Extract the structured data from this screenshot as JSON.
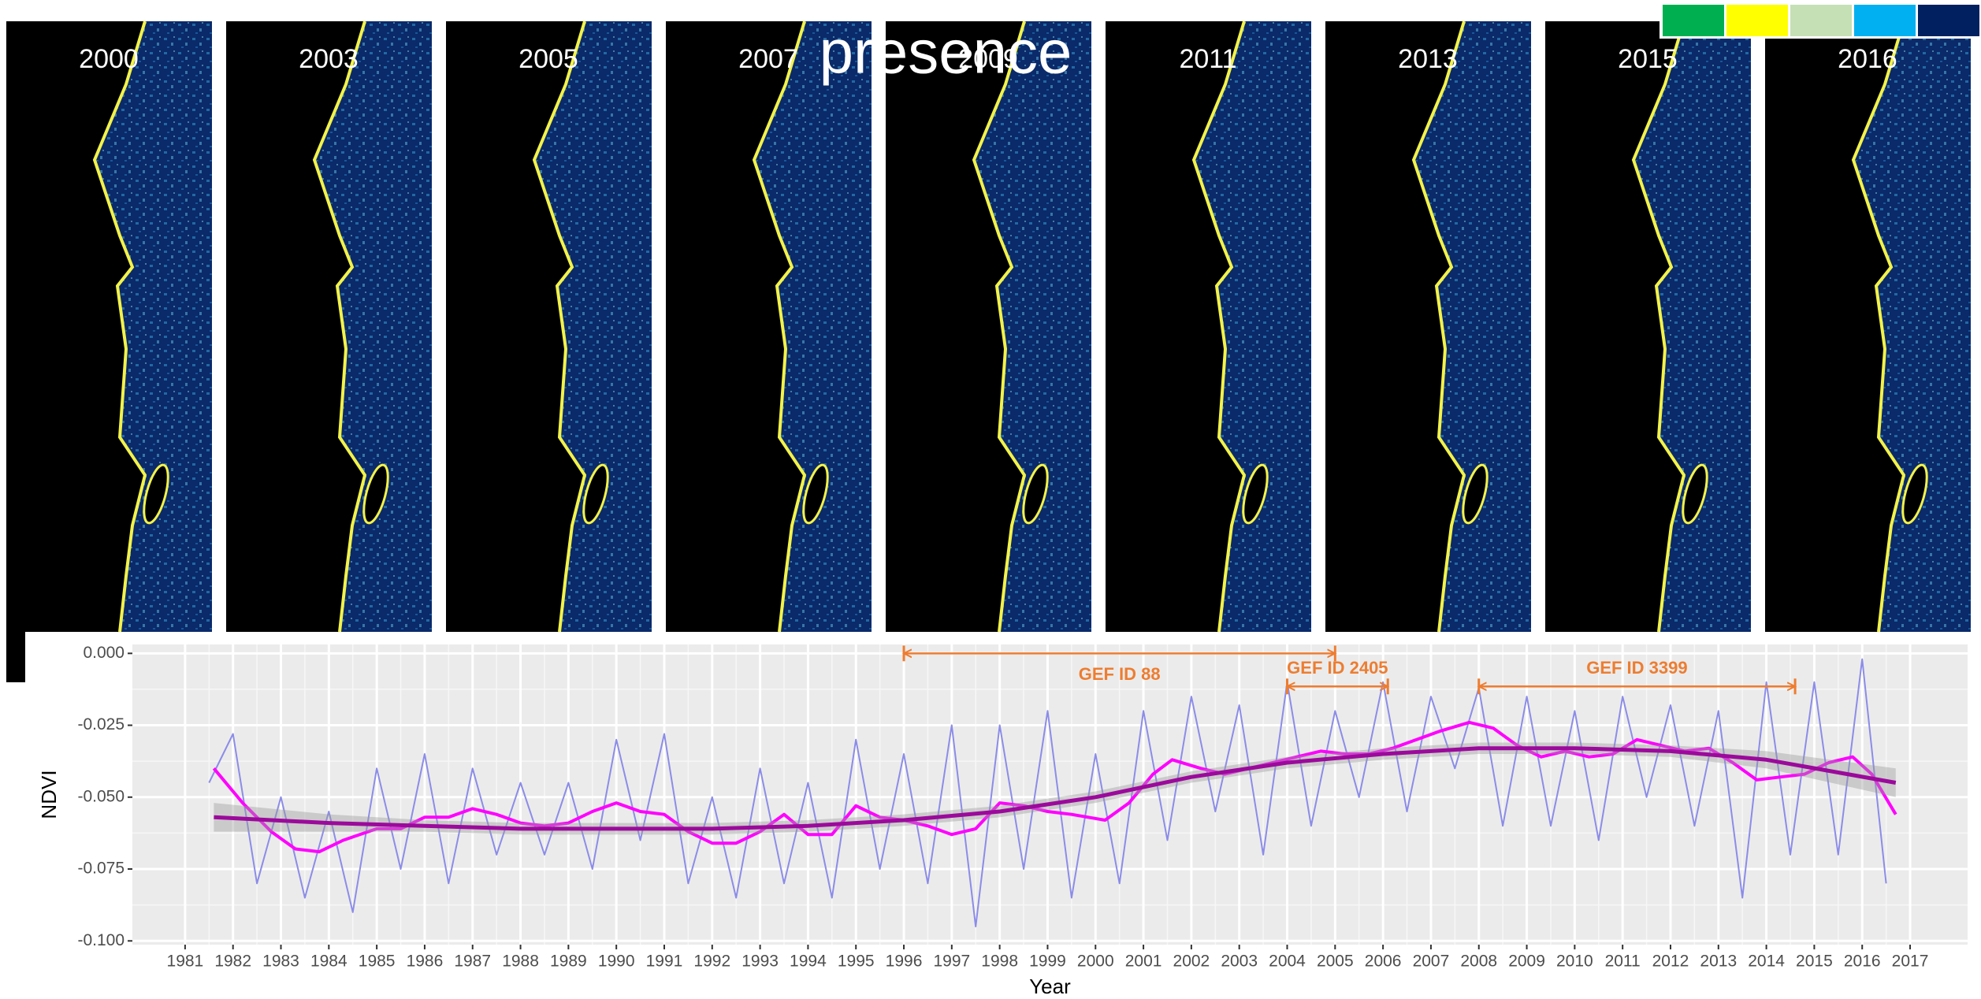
{
  "header": {
    "title": "presence"
  },
  "panels": {
    "labels": [
      "2000",
      "2003",
      "2005",
      "2007",
      "2009",
      "2011",
      "2013",
      "2015",
      "2016"
    ]
  },
  "chart_data": {
    "type": "line",
    "x_label": "Year",
    "y_label": "NDVI",
    "xlim": [
      1979.9,
      2018.2
    ],
    "ylim": [
      -0.1013,
      0.0031
    ],
    "xticks": [
      1981,
      1982,
      1983,
      1984,
      1985,
      1986,
      1987,
      1988,
      1989,
      1990,
      1991,
      1992,
      1993,
      1994,
      1995,
      1996,
      1997,
      1998,
      1999,
      2000,
      2001,
      2002,
      2003,
      2004,
      2005,
      2006,
      2007,
      2008,
      2009,
      2010,
      2011,
      2012,
      2013,
      2014,
      2015,
      2016,
      2017
    ],
    "yticks": [
      {
        "value": -0.1,
        "label": "-0.100"
      },
      {
        "value": -0.075,
        "label": "-0.075"
      },
      {
        "value": -0.05,
        "label": "-0.050"
      },
      {
        "value": -0.025,
        "label": "-0.025"
      },
      {
        "value": 0,
        "label": "0.000"
      }
    ],
    "grid": true,
    "series": [
      {
        "color": "#8c8ce8",
        "line_width": 2,
        "x": [
          1981.5,
          1982,
          1982.5,
          1983,
          1983.5,
          1984,
          1984.5,
          1985,
          1985.5,
          1986,
          1986.5,
          1987,
          1987.5,
          1988,
          1988.5,
          1989,
          1989.5,
          1990,
          1990.5,
          1991,
          1991.5,
          1992,
          1992.5,
          1993,
          1993.5,
          1994,
          1994.5,
          1995,
          1995.5,
          1996,
          1996.5,
          1997,
          1997.5,
          1998,
          1998.5,
          1999,
          1999.5,
          2000,
          2000.5,
          2001,
          2001.5,
          2002,
          2002.5,
          2003,
          2003.5,
          2004,
          2004.5,
          2005,
          2005.5,
          2006,
          2006.5,
          2007,
          2007.5,
          2008,
          2008.5,
          2009,
          2009.5,
          2010,
          2010.5,
          2011,
          2011.5,
          2012,
          2012.5,
          2013,
          2013.5,
          2014,
          2014.5,
          2015,
          2015.5,
          2016,
          2016.5
        ],
        "values": [
          -0.045,
          -0.028,
          -0.08,
          -0.05,
          -0.085,
          -0.055,
          -0.09,
          -0.04,
          -0.075,
          -0.035,
          -0.08,
          -0.04,
          -0.07,
          -0.045,
          -0.07,
          -0.045,
          -0.075,
          -0.03,
          -0.065,
          -0.028,
          -0.08,
          -0.05,
          -0.085,
          -0.04,
          -0.08,
          -0.045,
          -0.085,
          -0.03,
          -0.075,
          -0.035,
          -0.08,
          -0.025,
          -0.095,
          -0.025,
          -0.075,
          -0.02,
          -0.085,
          -0.035,
          -0.08,
          -0.02,
          -0.065,
          -0.015,
          -0.055,
          -0.018,
          -0.07,
          -0.01,
          -0.06,
          -0.02,
          -0.05,
          -0.01,
          -0.055,
          -0.015,
          -0.04,
          -0.012,
          -0.06,
          -0.015,
          -0.06,
          -0.02,
          -0.065,
          -0.015,
          -0.05,
          -0.018,
          -0.06,
          -0.02,
          -0.085,
          -0.01,
          -0.07,
          -0.01,
          -0.07,
          -0.002,
          -0.08
        ]
      },
      {
        "color": "#ff00ff",
        "line_width": 4,
        "x": [
          1981.6,
          1982.2,
          1982.8,
          1983.3,
          1983.8,
          1984.3,
          1985,
          1985.5,
          1986,
          1986.5,
          1987,
          1987.5,
          1988,
          1988.5,
          1989,
          1989.5,
          1990,
          1990.5,
          1991,
          1991.5,
          1992,
          1992.5,
          1993,
          1993.5,
          1994,
          1994.5,
          1995,
          1995.5,
          1996,
          1996.5,
          1997,
          1997.5,
          1998,
          1998.5,
          1999,
          1999.5,
          2000.2,
          2000.7,
          2001.2,
          2001.6,
          2002.2,
          2002.7,
          2003.2,
          2003.7,
          2004.2,
          2004.7,
          2005.2,
          2005.7,
          2006.2,
          2006.7,
          2007.2,
          2007.8,
          2008.3,
          2008.8,
          2009.3,
          2009.8,
          2010.3,
          2010.8,
          2011.3,
          2011.8,
          2012.3,
          2012.8,
          2013.3,
          2013.8,
          2014.3,
          2014.8,
          2015.3,
          2015.8,
          2016.2,
          2016.7
        ],
        "values": [
          -0.04,
          -0.052,
          -0.062,
          -0.068,
          -0.069,
          -0.065,
          -0.061,
          -0.061,
          -0.057,
          -0.057,
          -0.054,
          -0.056,
          -0.059,
          -0.06,
          -0.059,
          -0.055,
          -0.052,
          -0.055,
          -0.056,
          -0.062,
          -0.066,
          -0.066,
          -0.062,
          -0.056,
          -0.063,
          -0.063,
          -0.053,
          -0.057,
          -0.058,
          -0.06,
          -0.063,
          -0.061,
          -0.052,
          -0.053,
          -0.055,
          -0.056,
          -0.058,
          -0.052,
          -0.042,
          -0.037,
          -0.04,
          -0.042,
          -0.04,
          -0.038,
          -0.036,
          -0.034,
          -0.035,
          -0.035,
          -0.033,
          -0.03,
          -0.027,
          -0.024,
          -0.026,
          -0.032,
          -0.036,
          -0.034,
          -0.036,
          -0.035,
          -0.03,
          -0.032,
          -0.034,
          -0.033,
          -0.038,
          -0.044,
          -0.043,
          -0.042,
          -0.038,
          -0.036,
          -0.042,
          -0.056
        ]
      },
      {
        "color": "#9b0a9b",
        "line_width": 5,
        "x": [
          1981.6,
          1984,
          1986,
          1988,
          1990,
          1992,
          1994,
          1996,
          1998,
          2000,
          2002,
          2004,
          2006,
          2008,
          2010,
          2012,
          2014,
          2016.7
        ],
        "values": [
          -0.057,
          -0.059,
          -0.06,
          -0.061,
          -0.061,
          -0.061,
          -0.06,
          -0.058,
          -0.055,
          -0.05,
          -0.043,
          -0.038,
          -0.035,
          -0.033,
          -0.033,
          -0.034,
          -0.037,
          -0.045
        ],
        "lower": [
          -0.062,
          -0.062,
          -0.062,
          -0.063,
          -0.063,
          -0.063,
          -0.062,
          -0.06,
          -0.057,
          -0.052,
          -0.045,
          -0.04,
          -0.037,
          -0.035,
          -0.035,
          -0.036,
          -0.04,
          -0.05
        ],
        "upper": [
          -0.052,
          -0.056,
          -0.058,
          -0.059,
          -0.059,
          -0.059,
          -0.058,
          -0.056,
          -0.053,
          -0.048,
          -0.041,
          -0.036,
          -0.033,
          -0.031,
          -0.031,
          -0.032,
          -0.034,
          -0.04
        ]
      }
    ],
    "annotations": [
      {
        "text": "GEF ID 88",
        "x": [
          1996,
          2005
        ],
        "y": 0
      },
      {
        "text": "GEF ID 2405",
        "x": [
          2004,
          2006.1
        ],
        "y": -0.0115
      },
      {
        "text": "GEF ID 3399",
        "x": [
          2008,
          2014.6
        ],
        "y": -0.0115
      }
    ],
    "annotation_color": "#ed7d31"
  }
}
